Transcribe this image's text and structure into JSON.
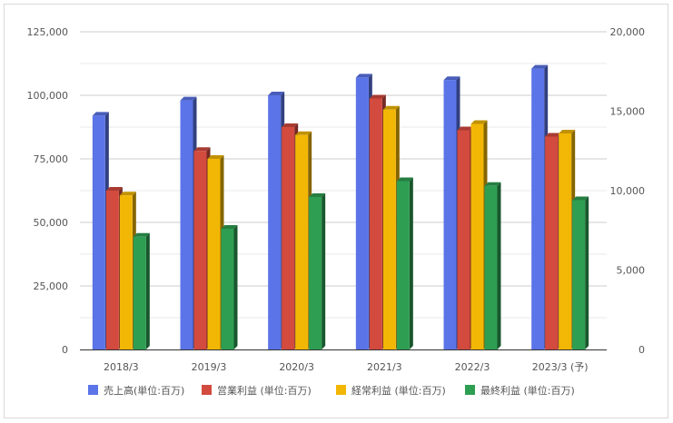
{
  "chart_data": {
    "type": "bar",
    "categories": [
      "2018/3",
      "2019/3",
      "2020/3",
      "2021/3",
      "2022/3",
      "2023/3 (予)"
    ],
    "left_axis": {
      "ticks": [
        "0",
        "25,000",
        "50,000",
        "75,000",
        "100,000",
        "125,000"
      ],
      "ylim": [
        0,
        125000
      ]
    },
    "right_axis": {
      "ticks": [
        "0",
        "5,000",
        "10,000",
        "15,000",
        "20,000"
      ],
      "ylim": [
        0,
        20000
      ]
    },
    "series": [
      {
        "name": "売上高(単位:百万)",
        "axis": "left",
        "color": "#5b74e8",
        "values": [
          92000,
          98000,
          100000,
          107000,
          106000,
          110500
        ]
      },
      {
        "name": "営業利益 (単位:百万)",
        "axis": "right",
        "color": "#d34a3f",
        "values": [
          10000,
          12500,
          14000,
          15800,
          13800,
          13400
        ]
      },
      {
        "name": "経常利益 (単位:百万)",
        "axis": "right",
        "color": "#f2b705",
        "values": [
          9700,
          12000,
          13500,
          15100,
          14200,
          13600
        ]
      },
      {
        "name": "最終利益 (単位:百万)",
        "axis": "right",
        "color": "#2e9e52",
        "values": [
          7100,
          7600,
          9600,
          10600,
          10300,
          9400
        ]
      }
    ],
    "grid": true,
    "legend_position": "bottom"
  }
}
